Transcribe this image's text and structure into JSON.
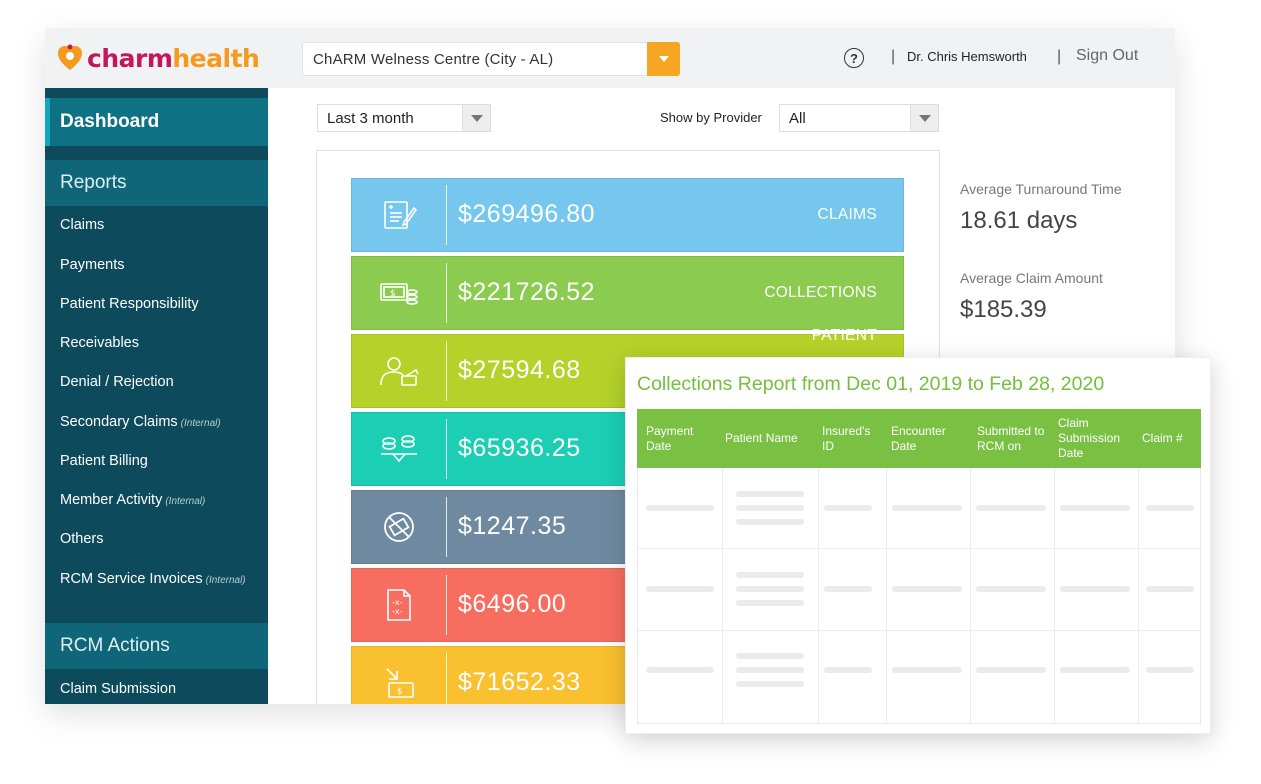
{
  "header": {
    "logo": {
      "part1": "charm",
      "part2": "health"
    },
    "clinic": "ChARM Welness Centre (City - AL)",
    "help_icon": "?",
    "separator": "|",
    "user": "Dr. Chris Hemsworth",
    "signout": "Sign Out"
  },
  "sidebar": {
    "dashboard": "Dashboard",
    "reports_title": "Reports",
    "items": [
      {
        "label": "Claims",
        "tag": ""
      },
      {
        "label": "Payments",
        "tag": ""
      },
      {
        "label": "Patient Responsibility",
        "tag": ""
      },
      {
        "label": "Receivables",
        "tag": ""
      },
      {
        "label": "Denial / Rejection",
        "tag": ""
      },
      {
        "label": "Secondary Claims",
        "tag": "(Internal)"
      },
      {
        "label": "Patient Billing",
        "tag": ""
      },
      {
        "label": "Member Activity",
        "tag": "(Internal)"
      },
      {
        "label": "Others",
        "tag": ""
      },
      {
        "label": "RCM Service Invoices",
        "tag": "(Internal)"
      }
    ],
    "actions_title": "RCM Actions",
    "actions": [
      {
        "label": "Claim Submission"
      }
    ]
  },
  "filters": {
    "period": "Last 3 month",
    "provider_label": "Show by Provider",
    "provider": "All"
  },
  "cards": [
    {
      "amount": "$269496.80",
      "label": "CLAIMS",
      "color": "#76c7ee",
      "icon": "claim-form-icon"
    },
    {
      "amount": "$221726.52",
      "label": "COLLECTIONS",
      "color": "#8bcb4f",
      "icon": "cash-coins-icon"
    },
    {
      "amount": "$27594.68",
      "label": "PATIENT",
      "color": "#b6d22a",
      "icon": "patient-wallet-icon"
    },
    {
      "amount": "$65936.25",
      "label": "",
      "color": "#1ccfb4",
      "icon": "coins-balance-icon"
    },
    {
      "amount": "$1247.35",
      "label": "",
      "color": "#6f8aa0",
      "icon": "no-money-icon"
    },
    {
      "amount": "$6496.00",
      "label": "",
      "color": "#f76e60",
      "icon": "denied-invoice-icon"
    },
    {
      "amount": "$71652.33",
      "label": "",
      "color": "#f9c02f",
      "icon": "payment-transfer-icon"
    }
  ],
  "stats": [
    {
      "label": "Average Turnaround Time",
      "value": "18.61 days"
    },
    {
      "label": "Average Claim Amount",
      "value": "$185.39"
    }
  ],
  "report": {
    "title": "Collections Report from Dec 01, 2019 to Feb 28, 2020",
    "columns": [
      "Payment Date",
      "Patient Name",
      "Insured's ID",
      "Encounter Date",
      "Submitted to RCM on",
      "Claim Submission Date",
      "Claim #"
    ],
    "accent": "#7ac143"
  }
}
